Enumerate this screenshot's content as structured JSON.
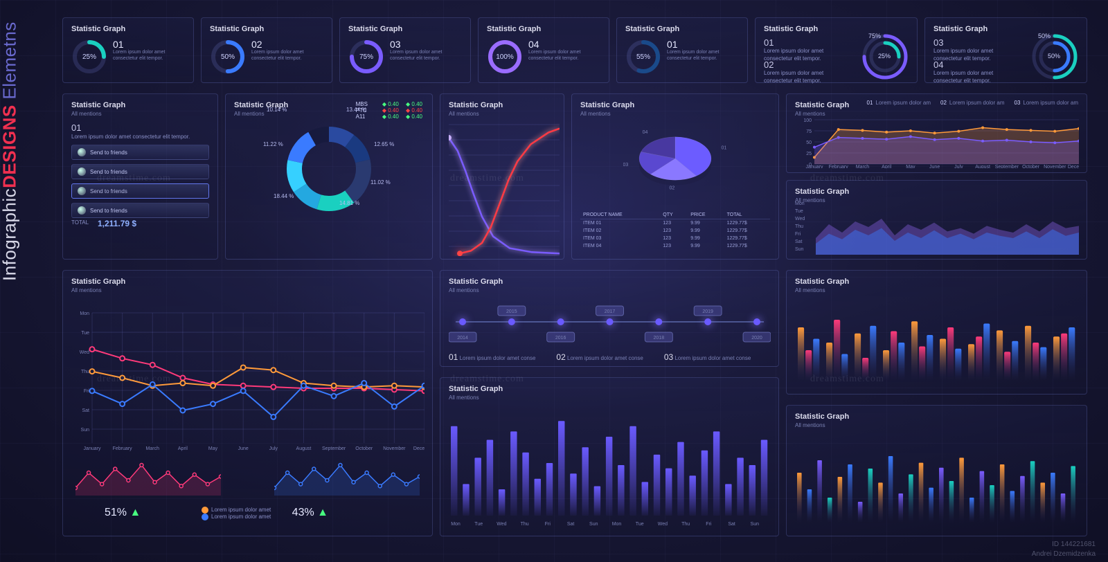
{
  "brand": {
    "a": "Infographic",
    "b": "DESIGNS",
    "c": " Elemetns"
  },
  "colors": {
    "bg_center": "#2a2a60",
    "bg_edge": "#0f0f24",
    "card_border": "rgba(120,130,220,.25)",
    "grid": "rgba(120,130,220,.18)",
    "text": "#c8c8e8",
    "muted": "#7a80b4",
    "teal": "#1ad0c0",
    "blue": "#3a7bff",
    "purple": "#7a5cff",
    "violet": "#9a6cff",
    "pink": "#ff3a7a",
    "red": "#ff4444",
    "orange": "#ff9a3a",
    "lime": "#48ff80",
    "cyan": "#36d0ff"
  },
  "lorem": "Lorem ipsum dolor amet consectetur elit tempor.",
  "common": {
    "title": "Statistic Graph",
    "subtitle": "All mentions"
  },
  "tiles": [
    {
      "num": "01",
      "pct": 25,
      "color": "#1ad0c0"
    },
    {
      "num": "02",
      "pct": 50,
      "color": "#3a7bff"
    },
    {
      "num": "03",
      "pct": 75,
      "color": "#7a5cff"
    },
    {
      "num": "04",
      "pct": 100,
      "color": "#9a6cff"
    },
    {
      "num": "01",
      "pct": 55,
      "color": "#1a4a8a"
    }
  ],
  "tile_nested": [
    {
      "nums": [
        "01",
        "02"
      ],
      "inner_pct": 25,
      "outer_pct": 75,
      "inner_color": "#1ad0c0",
      "outer_color": "#7a5cff"
    },
    {
      "nums": [
        "03",
        "04"
      ],
      "inner_pct": 50,
      "outer_pct": 50,
      "inner_color": "#3a7bff",
      "outer_color": "#1ad0c0"
    }
  ],
  "panel_buttons": {
    "heading_num": "01",
    "buttons": [
      "Send to friends",
      "Send to friends",
      "Send to friends",
      "Send to friends"
    ],
    "total_label": "TOTAL",
    "total_value": "1,211.79 $"
  },
  "donut": {
    "type": "donut",
    "header": {
      "rows": [
        {
          "k": "MBS",
          "v1": "0.40",
          "v2": "0.40",
          "c": "#48ff80"
        },
        {
          "k": "PTC",
          "v1": "0.40",
          "v2": "0.40",
          "c": "#ff4444"
        },
        {
          "k": "A11",
          "v1": "0.40",
          "v2": "0.40",
          "c": "#48ff80"
        }
      ]
    },
    "segments": [
      {
        "pct": 10.14,
        "color": "#2a4aa0"
      },
      {
        "pct": 11.22,
        "color": "#1a3a80"
      },
      {
        "pct": 18.44,
        "color": "#2a3a70"
      },
      {
        "pct": 14.81,
        "color": "#1ad0c0"
      },
      {
        "pct": 11.02,
        "color": "#24a8e0"
      },
      {
        "pct": 12.65,
        "color": "#36d0ff"
      },
      {
        "pct": 13.44,
        "color": "#3a7bff"
      }
    ],
    "labels": [
      "10.14 %",
      "11.22 %",
      "18.44 %",
      "14.81 %",
      "11.02 %",
      "12.65 %",
      "13.44 %"
    ]
  },
  "curves": {
    "type": "line",
    "series": [
      {
        "color": "#7a5cff",
        "glow": "#b090ff",
        "pts": [
          [
            0,
            90
          ],
          [
            8,
            80
          ],
          [
            15,
            65
          ],
          [
            22,
            48
          ],
          [
            30,
            30
          ],
          [
            40,
            15
          ],
          [
            55,
            6
          ],
          [
            75,
            3
          ],
          [
            100,
            2
          ]
        ],
        "tip_color": "#c8b0ff"
      },
      {
        "color": "#ff3a44",
        "glow": "#ff9090",
        "pts": [
          [
            10,
            2
          ],
          [
            20,
            4
          ],
          [
            30,
            10
          ],
          [
            38,
            22
          ],
          [
            46,
            40
          ],
          [
            54,
            58
          ],
          [
            62,
            72
          ],
          [
            74,
            85
          ],
          [
            90,
            94
          ],
          [
            100,
            97
          ]
        ],
        "tip_color": "#ff4444"
      }
    ]
  },
  "pie": {
    "type": "pie3d",
    "slices": [
      {
        "num": "01",
        "pct": 40,
        "color": "#6c5cff"
      },
      {
        "num": "02",
        "pct": 22,
        "color": "#8a78ff"
      },
      {
        "num": "03",
        "pct": 18,
        "color": "#5a48d0"
      },
      {
        "num": "04",
        "pct": 20,
        "color": "#4838a0"
      }
    ],
    "table": {
      "columns": [
        "PRODUCT NAME",
        "QTY",
        "PRICE",
        "TOTAL"
      ],
      "rows": [
        [
          "ITEM 01",
          "123",
          "9.99",
          "1229.77$"
        ],
        [
          "ITEM 02",
          "123",
          "9.99",
          "1229.77$"
        ],
        [
          "ITEM 03",
          "123",
          "9.99",
          "1229.77$"
        ],
        [
          "ITEM 04",
          "123",
          "9.99",
          "1229.77$"
        ]
      ]
    }
  },
  "area_top": {
    "type": "area",
    "ylim": [
      0,
      100
    ],
    "yticks": [
      0,
      25,
      50,
      75,
      100
    ],
    "months": [
      "January",
      "February",
      "March",
      "April",
      "May",
      "June",
      "July",
      "August",
      "September",
      "October",
      "November",
      "December"
    ],
    "series": [
      {
        "color": "#ff9a3a",
        "fill": "rgba(255,154,58,.25)",
        "vals": [
          15,
          78,
          76,
          72,
          75,
          70,
          74,
          82,
          78,
          76,
          74,
          80
        ]
      },
      {
        "color": "#7a5cff",
        "fill": "rgba(122,92,255,.25)",
        "vals": [
          38,
          60,
          58,
          56,
          62,
          55,
          58,
          52,
          54,
          50,
          48,
          52
        ]
      }
    ],
    "callouts": [
      {
        "num": "01"
      },
      {
        "num": "02"
      },
      {
        "num": "03"
      }
    ]
  },
  "area_days": {
    "type": "area",
    "days": [
      "Mon",
      "Tue",
      "Wed",
      "Thu",
      "Fri",
      "Sat",
      "Sun"
    ],
    "series": [
      {
        "color": "#9a6cff",
        "vals": [
          30,
          55,
          40,
          60,
          50,
          65,
          35,
          55,
          45,
          58,
          42,
          48,
          38,
          52,
          45,
          40,
          55,
          42,
          60,
          48,
          52
        ]
      },
      {
        "color": "#3a7bff",
        "vals": [
          20,
          38,
          28,
          45,
          35,
          48,
          25,
          40,
          30,
          44,
          30,
          38,
          28,
          40,
          34,
          30,
          42,
          30,
          46,
          34,
          40
        ]
      }
    ]
  },
  "multi_line": {
    "type": "line",
    "months": [
      "January",
      "February",
      "March",
      "April",
      "May",
      "June",
      "July",
      "August",
      "September",
      "October",
      "November",
      "December"
    ],
    "yticks": [
      "Mon",
      "Tue",
      "Wed",
      "Thu",
      "Fri",
      "Sat",
      "Sun"
    ],
    "series": [
      {
        "color": "#ff3a7a",
        "vals": [
          72,
          65,
          60,
          50,
          45,
          44,
          43,
          42,
          42,
          42,
          41,
          40
        ]
      },
      {
        "color": "#ff9a3a",
        "vals": [
          55,
          50,
          44,
          46,
          44,
          58,
          56,
          46,
          44,
          43,
          44,
          43
        ]
      },
      {
        "color": "#3a7bff",
        "vals": [
          40,
          30,
          45,
          25,
          30,
          40,
          20,
          44,
          36,
          46,
          28,
          44
        ]
      }
    ],
    "spark": {
      "common_vals": [
        20,
        60,
        30,
        70,
        40,
        80,
        35,
        60,
        25,
        55,
        30,
        50
      ],
      "left": {
        "color": "#ff3a7a",
        "pct_label": "51%"
      },
      "right": {
        "color": "#3a7bff",
        "pct_label": "43%"
      },
      "arrow_color": "#48ff80"
    },
    "legend": [
      {
        "color": "#ff9a3a",
        "label": "Lorem ipsum dolor amet"
      },
      {
        "color": "#3a7bff",
        "label": "Lorem ipsum dolor amet"
      }
    ]
  },
  "timeline": {
    "years": [
      "2014",
      "2015",
      "2016",
      "2017",
      "2018",
      "2019",
      "2020"
    ],
    "callouts": [
      {
        "num": "01"
      },
      {
        "num": "02"
      },
      {
        "num": "03"
      }
    ]
  },
  "bars_mono": {
    "type": "bar",
    "color_top": "#6a5aff",
    "color_bot": "rgba(106,90,255,.05)",
    "vals": [
      85,
      30,
      55,
      72,
      25,
      80,
      60,
      35,
      50,
      90,
      40,
      65,
      28,
      75,
      48,
      85,
      32,
      58,
      45,
      70,
      38,
      62,
      80,
      30,
      55,
      48,
      72
    ],
    "days": [
      "Mon",
      "Tue",
      "Wed",
      "Thu",
      "Fri",
      "Sat",
      "Sun",
      "Mon",
      "Tue",
      "Wed",
      "Thu",
      "Fri",
      "Sat",
      "Sun"
    ]
  },
  "bars_grad": {
    "type": "bar",
    "groups": 10,
    "colors": [
      "#ff9a3a",
      "#ff3a7a",
      "#3a7bff"
    ],
    "vals": [
      [
        70,
        40,
        55
      ],
      [
        50,
        80,
        35
      ],
      [
        62,
        30,
        72
      ],
      [
        40,
        65,
        50
      ],
      [
        78,
        45,
        60
      ],
      [
        55,
        70,
        42
      ],
      [
        48,
        58,
        75
      ],
      [
        66,
        38,
        52
      ],
      [
        72,
        50,
        44
      ],
      [
        58,
        62,
        70
      ]
    ]
  },
  "bars_thin": {
    "type": "bar",
    "colors": [
      "#ff9a3a",
      "#3a7bff",
      "#7a5cff",
      "#1ad0c0"
    ],
    "cols": 28,
    "vals": [
      60,
      40,
      75,
      30,
      55,
      70,
      25,
      65,
      48,
      80,
      35,
      58,
      72,
      42,
      66,
      50,
      78,
      30,
      62,
      45,
      70,
      38,
      56,
      74,
      48,
      60,
      35,
      68
    ]
  },
  "watermark_text": "dreamstime.com",
  "credit": "Andrei Dzemidzenka",
  "image_id": "ID 144221681"
}
